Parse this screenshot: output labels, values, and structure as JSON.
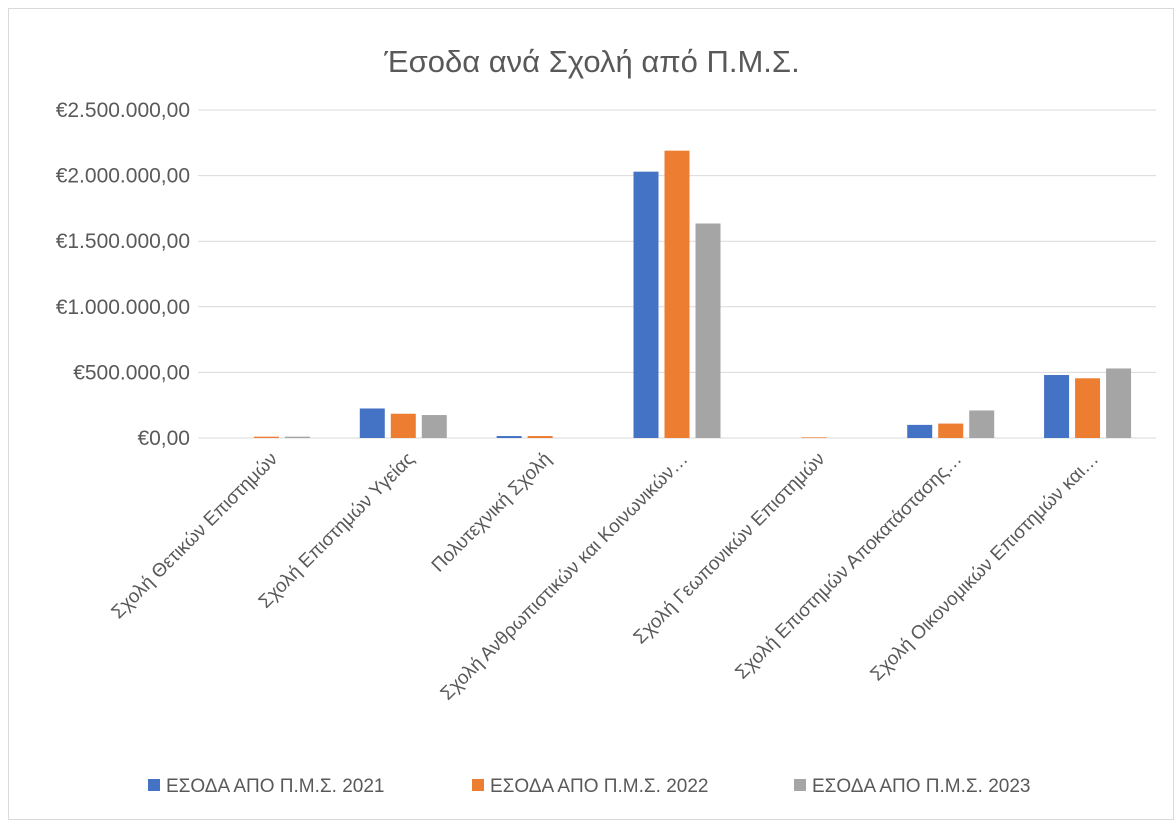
{
  "chart_data": {
    "type": "bar",
    "title": "Έσοδα ανά Σχολή από Π.Μ.Σ.",
    "xlabel": "",
    "ylabel": "",
    "categories": [
      "Σχολή Θετικών Επιστημών",
      "Σχολή Επιστημών Υγείας",
      "Πολυτεχνική Σχολή",
      "Σχολή Ανθρωπιστικών και Κοινωνικών…",
      "Σχολή Γεωπονικών Επιστημών",
      "Σχολή Επιστημών Αποκατάστασης…",
      "Σχολή Οικονομικών Επιστημών και…"
    ],
    "series": [
      {
        "name": "ΕΣΟΔΑ ΑΠΟ Π.Μ.Σ. 2021",
        "color": "#4472c4",
        "values": [
          0,
          225000,
          15000,
          2030000,
          0,
          100000,
          480000
        ]
      },
      {
        "name": "ΕΣΟΔΑ ΑΠΟ Π.Μ.Σ. 2022",
        "color": "#ed7d31",
        "values": [
          10000,
          185000,
          15000,
          2190000,
          5000,
          110000,
          455000
        ]
      },
      {
        "name": "ΕΣΟΔΑ ΑΠΟ Π.Μ.Σ. 2023",
        "color": "#a5a5a5",
        "values": [
          10000,
          175000,
          0,
          1635000,
          0,
          210000,
          530000
        ]
      }
    ],
    "ylim": [
      0,
      2500000
    ],
    "yticks": [
      0,
      500000,
      1000000,
      1500000,
      2000000,
      2500000
    ],
    "ytick_labels": [
      "€0,00",
      "€500.000,00",
      "€1.000.000,00",
      "€1.500.000,00",
      "€2.000.000,00",
      "€2.500.000,00"
    ],
    "grid": true,
    "legend_position": "bottom"
  }
}
